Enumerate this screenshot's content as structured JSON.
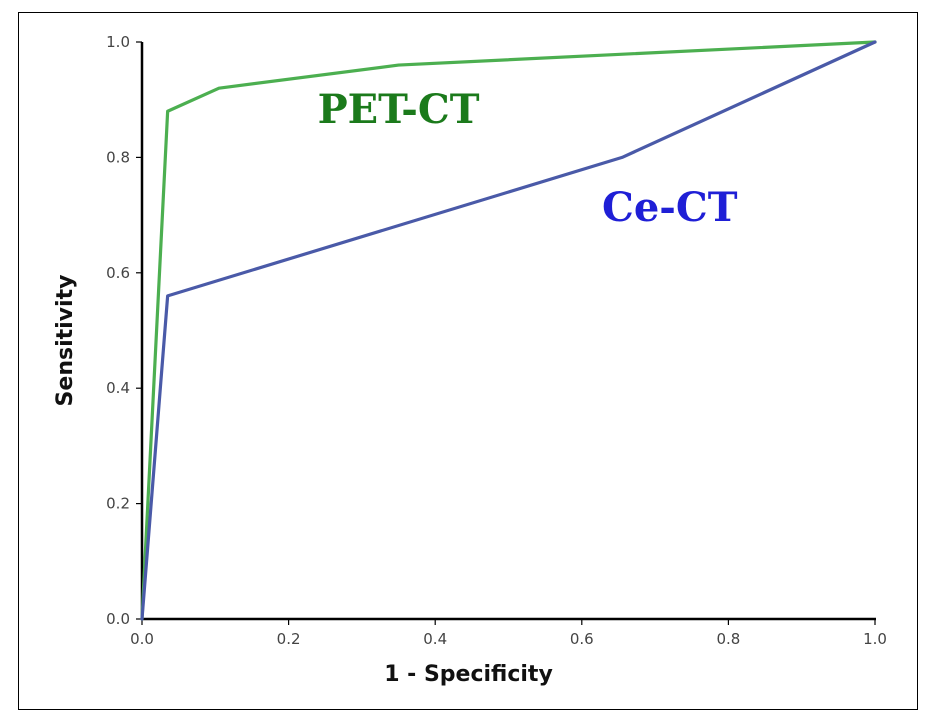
{
  "chart_data": {
    "type": "line",
    "title": "",
    "xlabel": "1 - Specificity",
    "ylabel": "Sensitivity",
    "xlim": [
      0,
      1
    ],
    "ylim": [
      0,
      1
    ],
    "x_ticks": [
      "0.0",
      "0.2",
      "0.4",
      "0.6",
      "0.8",
      "1.0"
    ],
    "y_ticks": [
      "0.0",
      "0.2",
      "0.4",
      "0.6",
      "0.8",
      "1.0"
    ],
    "grid": false,
    "series": [
      {
        "name": "PET-CT",
        "color": "#4caf50",
        "label_color": "#1b7a1b",
        "points": [
          [
            0,
            0
          ],
          [
            0.035,
            0.88
          ],
          [
            0.105,
            0.92
          ],
          [
            0.35,
            0.96
          ],
          [
            1.0,
            1.0
          ]
        ]
      },
      {
        "name": "Ce-CT",
        "color": "#4a5aa8",
        "label_color": "#1f1fd6",
        "points": [
          [
            0,
            0
          ],
          [
            0.035,
            0.56
          ],
          [
            0.655,
            0.8
          ],
          [
            1.0,
            1.0
          ]
        ]
      }
    ]
  }
}
